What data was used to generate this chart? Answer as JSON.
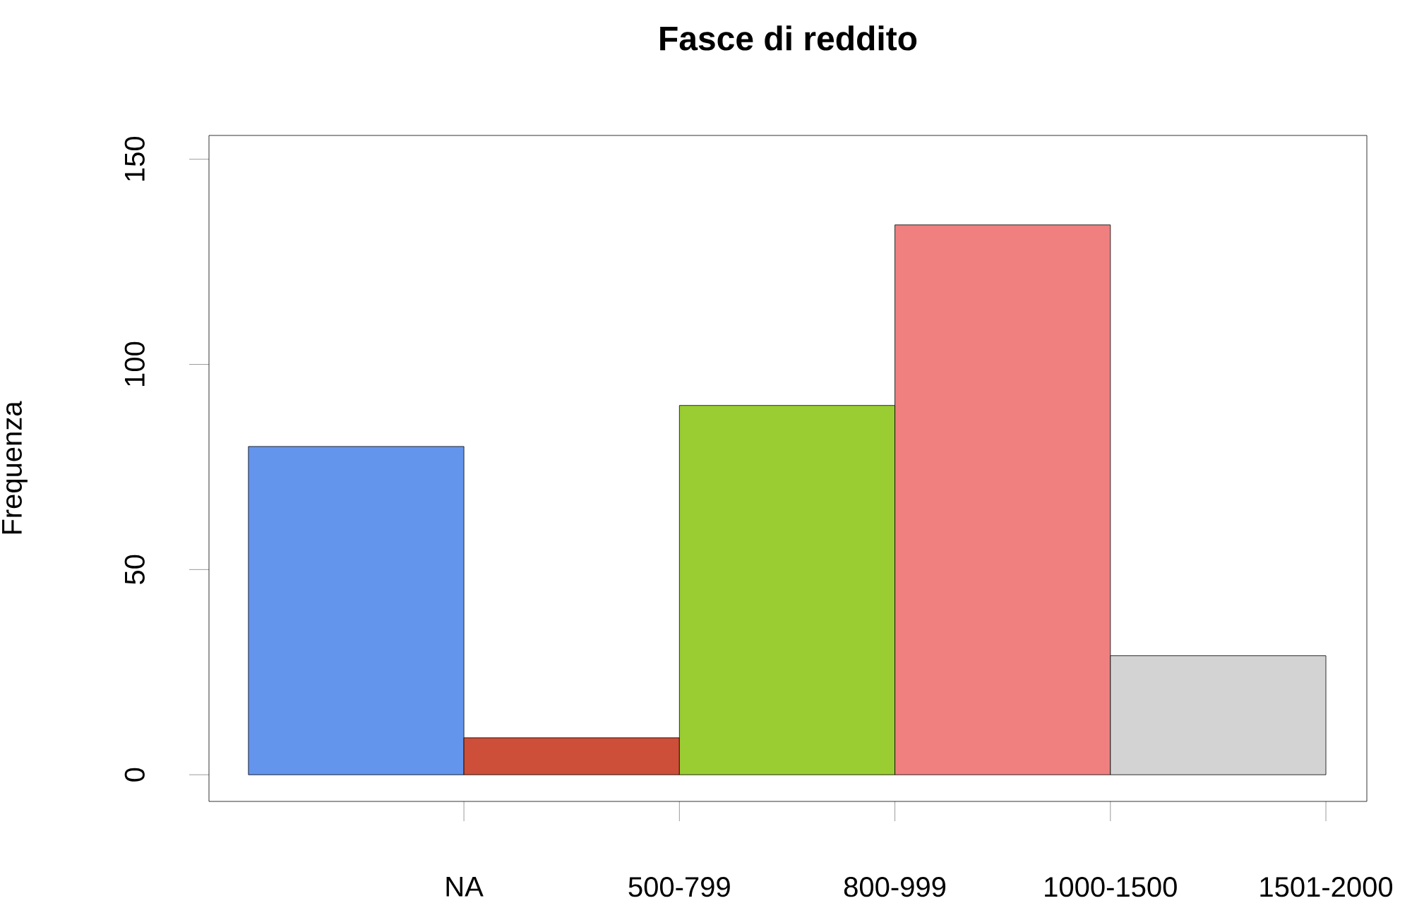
{
  "chart_data": {
    "type": "bar",
    "title": "Fasce di reddito",
    "ylabel": "Frequenza",
    "categories": [
      "NA",
      "500-799",
      "800-999",
      "1000-1500",
      "1501-2000"
    ],
    "values": [
      80,
      9,
      90,
      134,
      29
    ],
    "colors": [
      "#6495ed",
      "#cd4f39",
      "#9acd32",
      "#f08080",
      "#d3d3d3"
    ],
    "ylim": [
      -6.5,
      155.8
    ],
    "yticks": [
      0,
      50,
      100,
      150
    ],
    "grid": false
  }
}
